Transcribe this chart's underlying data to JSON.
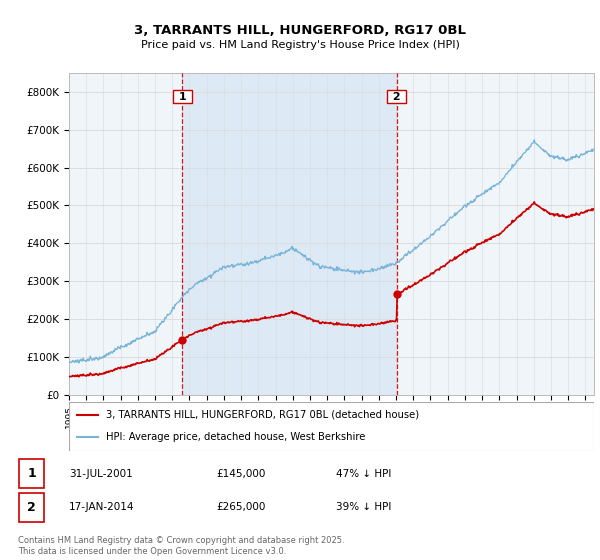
{
  "title_line1": "3, TARRANTS HILL, HUNGERFORD, RG17 0BL",
  "title_line2": "Price paid vs. HM Land Registry's House Price Index (HPI)",
  "ylim": [
    0,
    850000
  ],
  "yticks": [
    0,
    100000,
    200000,
    300000,
    400000,
    500000,
    600000,
    700000,
    800000
  ],
  "ytick_labels": [
    "£0",
    "£100K",
    "£200K",
    "£300K",
    "£400K",
    "£500K",
    "£600K",
    "£700K",
    "£800K"
  ],
  "hpi_color": "#7ab4d8",
  "price_color": "#cc0000",
  "sale1_date": 2001.58,
  "sale1_price": 145000,
  "sale2_date": 2014.04,
  "sale2_price": 265000,
  "vline_color": "#cc0000",
  "background_color": "#f0f5fa",
  "grid_color": "#dddddd",
  "shade_color": "#ddeaf5",
  "legend_line1": "3, TARRANTS HILL, HUNGERFORD, RG17 0BL (detached house)",
  "legend_line2": "HPI: Average price, detached house, West Berkshire",
  "footnote": "Contains HM Land Registry data © Crown copyright and database right 2025.\nThis data is licensed under the Open Government Licence v3.0.",
  "xmin": 1995,
  "xmax": 2025.5
}
